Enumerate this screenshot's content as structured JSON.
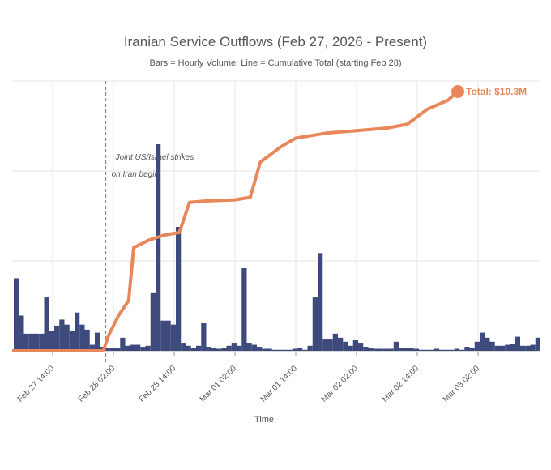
{
  "colors": {
    "bar": "#3f4a7c",
    "line": "#e8875a",
    "grid": "#e6e6e6",
    "axis": "#cccccc",
    "text": "#555555"
  },
  "chart_data": {
    "type": "bar+line",
    "title": "Iranian Service Outflows (Feb 27, 2026 - Present)",
    "subtitle": "Bars = Hourly Volume; Line = Cumulative Total (starting Feb 28)",
    "xlabel": "Time",
    "ylabel": "",
    "x_start": "2026-02-27 06:00",
    "x_range": [
      "2026-02-27 06:00",
      "2026-03-03 14:00"
    ],
    "x_tick_labels": [
      "Feb 27 14:00",
      "Feb 28 02:00",
      "Feb 28 14:00",
      "Mar 01 02:00",
      "Mar 01 14:00",
      "Mar 02 02:00",
      "Mar 02 14:00",
      "Mar 03 02:00"
    ],
    "y_axis_visible": false,
    "grid": true,
    "bars": {
      "name": "Hourly Volume",
      "values": [
        0.72,
        0.35,
        0.17,
        0.17,
        0.17,
        0.17,
        0.53,
        0.2,
        0.25,
        0.31,
        0.26,
        0.2,
        0.38,
        0.26,
        0.21,
        0.06,
        0.18,
        0.04,
        0.03,
        0.03,
        0.03,
        0.13,
        0.05,
        0.06,
        0.06,
        0.04,
        0.05,
        0.58,
        2.05,
        0.3,
        0.3,
        0.26,
        1.23,
        0.08,
        0.05,
        0.03,
        0.05,
        0.28,
        0.04,
        0.03,
        0.02,
        0.03,
        0.05,
        0.08,
        0.05,
        0.82,
        0.08,
        0.06,
        0.04,
        0.02,
        0.02,
        0.01,
        0.01,
        0.01,
        0.01,
        0.02,
        0.03,
        0.01,
        0.05,
        0.53,
        0.97,
        0.12,
        0.12,
        0.17,
        0.13,
        0.09,
        0.05,
        0.11,
        0.08,
        0.04,
        0.03,
        0.02,
        0.02,
        0.02,
        0.02,
        0.09,
        0.03,
        0.03,
        0.03,
        0.02,
        0.01,
        0.01,
        0.01,
        0.02,
        0.01,
        0.01,
        0.01,
        0.02,
        0.01,
        0.04,
        0.03,
        0.09,
        0.18,
        0.13,
        0.09,
        0.05,
        0.05,
        0.06,
        0.07,
        0.14,
        0.05,
        0.05,
        0.06,
        0.13
      ]
    },
    "line": {
      "name": "Cumulative Total",
      "start": "2026-02-28 00:00",
      "points": [
        [
          "2026-02-28 00:00",
          0.0
        ],
        [
          "2026-02-28 01:00",
          0.6
        ],
        [
          "2026-02-28 03:00",
          1.4
        ],
        [
          "2026-02-28 05:00",
          2.0
        ],
        [
          "2026-02-28 06:00",
          4.1
        ],
        [
          "2026-02-28 08:00",
          4.3
        ],
        [
          "2026-02-28 09:00",
          4.4
        ],
        [
          "2026-02-28 12:00",
          4.6
        ],
        [
          "2026-02-28 15:00",
          4.7
        ],
        [
          "2026-02-28 17:00",
          5.9
        ],
        [
          "2026-02-28 20:00",
          5.95
        ],
        [
          "2026-03-01 02:00",
          6.0
        ],
        [
          "2026-03-01 05:00",
          6.1
        ],
        [
          "2026-03-01 07:00",
          7.5
        ],
        [
          "2026-03-01 09:00",
          7.8
        ],
        [
          "2026-03-01 11:00",
          8.1
        ],
        [
          "2026-03-01 14:00",
          8.45
        ],
        [
          "2026-03-01 20:00",
          8.65
        ],
        [
          "2026-03-02 02:00",
          8.75
        ],
        [
          "2026-03-02 08:00",
          8.85
        ],
        [
          "2026-03-02 12:00",
          9.0
        ],
        [
          "2026-03-02 16:00",
          9.6
        ],
        [
          "2026-03-02 20:00",
          9.95
        ],
        [
          "2026-03-02 22:00",
          10.3
        ]
      ]
    },
    "annotations": [
      {
        "text": "Joint US/Israel strikes",
        "x": "2026-02-28 00:30"
      },
      {
        "text": "on Iran begin",
        "x": "2026-02-28 00:30"
      }
    ],
    "event_line_x": "2026-02-28 00:30",
    "end_label": "Total: $10.3M"
  }
}
